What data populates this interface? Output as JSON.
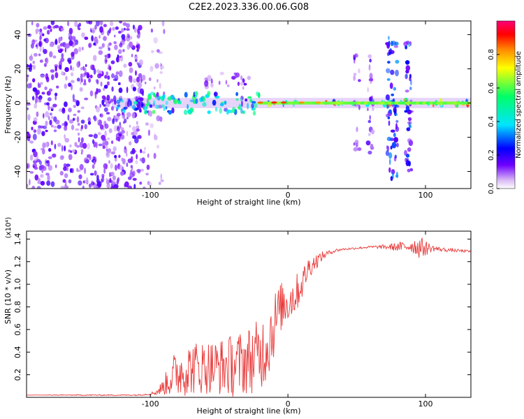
{
  "chart_data": [
    {
      "type": "heatmap",
      "title": "C2E2.2023.336.00.06.G08",
      "xlabel": "Height of straight line (km)",
      "ylabel": "Frequency (Hz)",
      "xlim": [
        -190,
        133
      ],
      "ylim": [
        -50,
        48
      ],
      "x_ticks": [
        -100,
        0,
        100
      ],
      "x_tick_labels": [
        "-100",
        "0",
        "100"
      ],
      "y_ticks": [
        -40,
        -20,
        0,
        20,
        40
      ],
      "y_tick_labels": [
        "-40",
        "-20",
        "0",
        "20",
        "40"
      ],
      "colorbar": {
        "label": "Normalized spectral amplitude",
        "range": [
          0,
          1
        ],
        "ticks": [
          0.0,
          0.2,
          0.4,
          0.6,
          0.8
        ],
        "tick_labels": [
          "0.0",
          "0.2",
          "0.4",
          "0.6",
          "0.8"
        ],
        "colormap": [
          "#ffffff",
          "#d9b8f5",
          "#6f00ff",
          "#0000ff",
          "#00e5ff",
          "#00ff66",
          "#ffff00",
          "#ff8800",
          "#ff0000",
          "#ff0077"
        ]
      },
      "clusters": [
        {
          "x": [
            -190,
            -105
          ],
          "y": [
            -50,
            48
          ],
          "amp": 0.12,
          "density": 1.0,
          "note": "noise"
        },
        {
          "x": [
            -105,
            -90
          ],
          "y": [
            -50,
            48
          ],
          "amp": 0.08,
          "density": 0.35
        },
        {
          "x": [
            -128,
            -105
          ],
          "y": [
            -5,
            2
          ],
          "amp": 0.32,
          "density": 1.0
        },
        {
          "x": [
            -105,
            -20
          ],
          "y": [
            -6,
            6
          ],
          "amp": 0.38,
          "density": 1.0
        },
        {
          "x": [
            -60,
            -28
          ],
          "y": [
            8,
            18
          ],
          "amp": 0.1,
          "density": 0.6
        },
        {
          "x": [
            -20,
            133
          ],
          "y": [
            -1.5,
            1.5
          ],
          "amp": 0.6,
          "density": 1.0
        },
        {
          "x": [
            48,
            52
          ],
          "y": [
            -30,
            30
          ],
          "amp": 0.12,
          "density": 0.7
        },
        {
          "x": [
            58,
            62
          ],
          "y": [
            -30,
            30
          ],
          "amp": 0.12,
          "density": 0.7
        },
        {
          "x": [
            72,
            80
          ],
          "y": [
            -45,
            40
          ],
          "amp": 0.22,
          "density": 1.0
        },
        {
          "x": [
            85,
            90
          ],
          "y": [
            -40,
            38
          ],
          "amp": 0.22,
          "density": 1.0
        }
      ],
      "band_peaks": [
        {
          "x": -20,
          "amp": 0.85
        },
        {
          "x": -10,
          "amp": 0.9
        },
        {
          "x": -3,
          "amp": 0.88
        },
        {
          "x": 10,
          "amp": 0.82
        },
        {
          "x": 22,
          "amp": 0.8
        }
      ]
    },
    {
      "type": "line",
      "title": "",
      "xlabel": "Height of straight line (km)",
      "ylabel": "SNR (10 * v/v)",
      "yscale_label": "(x10⁴)",
      "scale_factor": 10000,
      "xlim": [
        -190,
        133
      ],
      "ylim": [
        0.0,
        1.47
      ],
      "x_ticks": [
        -100,
        0,
        100
      ],
      "x_tick_labels": [
        "-100",
        "0",
        "100"
      ],
      "y_ticks": [
        0.2,
        0.4,
        0.6,
        0.8,
        1.0,
        1.2,
        1.4
      ],
      "y_tick_labels": [
        "0.2",
        "0.4",
        "0.6",
        "0.8",
        "1.0",
        "1.2",
        "1.4"
      ],
      "color": "#e83a3a",
      "series": [
        {
          "x": [
            -190,
            -150,
            -110,
            -100,
            -95,
            -90,
            -85,
            -80,
            -70,
            -60,
            -50,
            -40,
            -30,
            -20,
            -15,
            -10,
            -5,
            0,
            5,
            10,
            15,
            20,
            25,
            30,
            35,
            40,
            50,
            60,
            70,
            80,
            90,
            95,
            100,
            105,
            110,
            120,
            133
          ],
          "y": [
            0.02,
            0.02,
            0.02,
            0.03,
            0.05,
            0.1,
            0.18,
            0.22,
            0.26,
            0.27,
            0.27,
            0.28,
            0.32,
            0.38,
            0.48,
            0.65,
            0.8,
            0.85,
            0.9,
            1.0,
            1.15,
            1.2,
            1.25,
            1.28,
            1.3,
            1.31,
            1.32,
            1.33,
            1.33,
            1.33,
            1.34,
            1.33,
            1.32,
            1.32,
            1.31,
            1.3,
            1.29
          ],
          "noise": [
            0.0,
            0.005,
            0.005,
            0.01,
            0.03,
            0.08,
            0.18,
            0.22,
            0.24,
            0.24,
            0.25,
            0.28,
            0.3,
            0.32,
            0.35,
            0.3,
            0.22,
            0.2,
            0.18,
            0.14,
            0.1,
            0.07,
            0.04,
            0.02,
            0.015,
            0.01,
            0.01,
            0.01,
            0.02,
            0.04,
            0.06,
            0.1,
            0.07,
            0.03,
            0.02,
            0.015,
            0.01
          ]
        }
      ]
    }
  ]
}
